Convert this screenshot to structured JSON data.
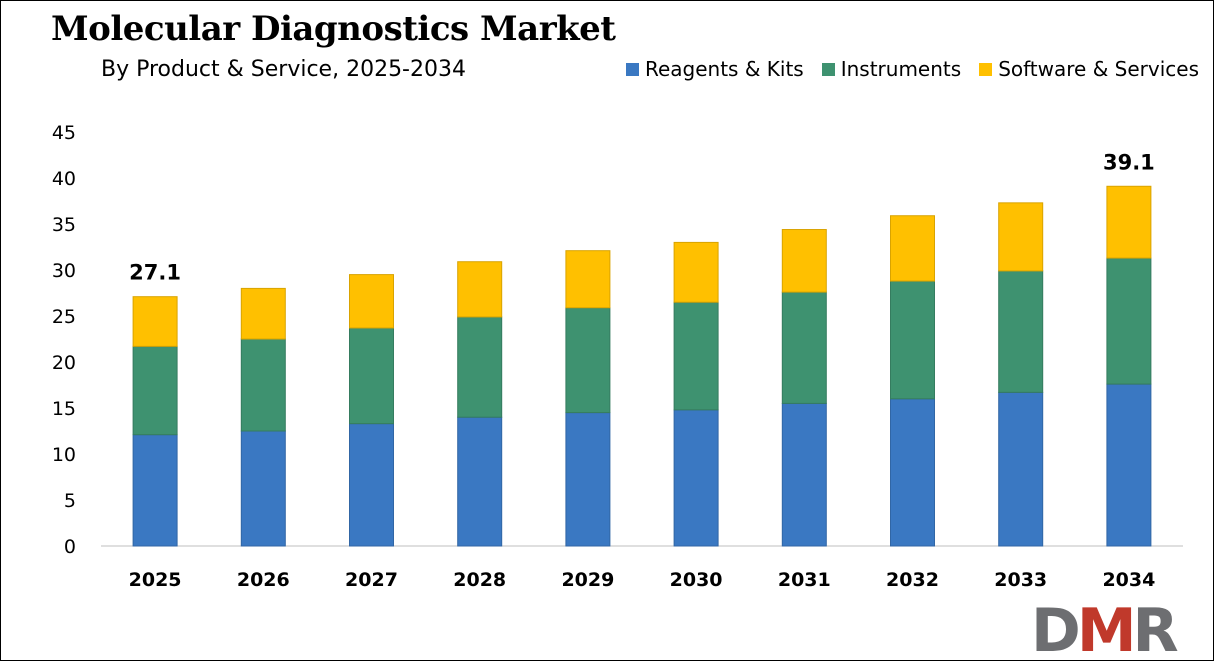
{
  "chart_data": {
    "type": "bar",
    "stacked": true,
    "title": "Molecular Diagnostics Market",
    "subtitle": "By Product & Service, 2025-2034",
    "categories": [
      "2025",
      "2026",
      "2027",
      "2028",
      "2029",
      "2030",
      "2031",
      "2032",
      "2033",
      "2034"
    ],
    "series": [
      {
        "name": "Reagents & Kits",
        "color": "#3a78c2",
        "values": [
          12.1,
          12.5,
          13.3,
          14.0,
          14.5,
          14.8,
          15.5,
          16.0,
          16.7,
          17.6
        ]
      },
      {
        "name": "Instruments",
        "color": "#3e9270",
        "values": [
          9.6,
          10.0,
          10.4,
          10.9,
          11.4,
          11.7,
          12.1,
          12.8,
          13.2,
          13.7
        ]
      },
      {
        "name": "Software & Services",
        "color": "#ffc000",
        "values": [
          5.4,
          5.5,
          5.8,
          6.0,
          6.2,
          6.5,
          6.8,
          7.1,
          7.4,
          7.8
        ]
      }
    ],
    "data_labels": [
      {
        "category": "2025",
        "text": "27.1"
      },
      {
        "category": "2034",
        "text": "39.1"
      }
    ],
    "ylim": [
      0,
      45
    ],
    "yticks": [
      0,
      5,
      10,
      15,
      20,
      25,
      30,
      35,
      40,
      45
    ],
    "xlabel": "",
    "ylabel": "",
    "grid": false,
    "legend_position": "top-right"
  },
  "logo": {
    "text": "DMR",
    "color_d": "#6d6e71",
    "color_m": "#c0392b",
    "color_r": "#6d6e71"
  }
}
